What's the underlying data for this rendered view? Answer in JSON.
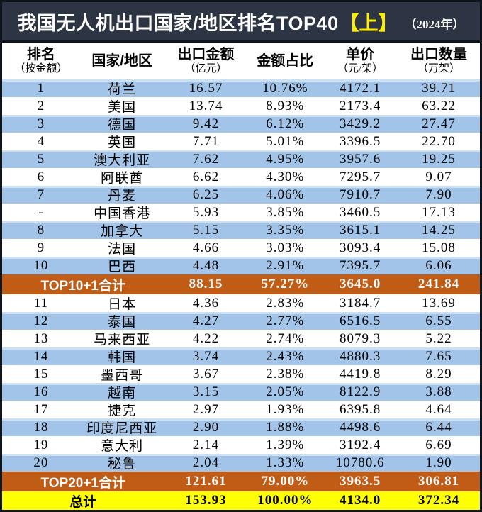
{
  "title": {
    "main": "我国无人机出口国家/地区排名TOP40",
    "part": "【上】",
    "year": "（2024年）"
  },
  "colors": {
    "title_bg": "#2d3544",
    "frame_border": "#10141b",
    "row_blue": "#a2c4e8",
    "row_blue_edge": "#cde0f2",
    "subtotal_orange": "#c15c17",
    "total_yellow": "#feff00",
    "part_highlight": "#ffee00"
  },
  "header": {
    "columns": [
      {
        "label": "排名",
        "sub": "（按金额）"
      },
      {
        "label": "国家/地区",
        "sub": ""
      },
      {
        "label": "出口金额",
        "sub": "（亿元）"
      },
      {
        "label": "金额占比",
        "sub": ""
      },
      {
        "label": "单价",
        "sub": "（元/架）"
      },
      {
        "label": "出口数量",
        "sub": "（万架）"
      }
    ]
  },
  "chart_data": {
    "type": "table",
    "title": "我国无人机出口国家/地区排名TOP40【上】（2024年）",
    "columns": [
      "排名（按金额）",
      "国家/地区",
      "出口金额（亿元）",
      "金额占比",
      "单价（元/架）",
      "出口数量（万架）"
    ],
    "rows": [
      {
        "type": "data",
        "rank": "1",
        "country": "荷兰",
        "amount": "16.57",
        "share": "10.76%",
        "price": "4172.1",
        "qty": "39.71"
      },
      {
        "type": "data",
        "rank": "2",
        "country": "美国",
        "amount": "13.74",
        "share": "8.93%",
        "price": "2173.4",
        "qty": "63.22"
      },
      {
        "type": "data",
        "rank": "3",
        "country": "德国",
        "amount": "9.42",
        "share": "6.12%",
        "price": "3429.2",
        "qty": "27.47"
      },
      {
        "type": "data",
        "rank": "4",
        "country": "英国",
        "amount": "7.71",
        "share": "5.01%",
        "price": "3396.5",
        "qty": "22.70"
      },
      {
        "type": "data",
        "rank": "5",
        "country": "澳大利亚",
        "amount": "7.62",
        "share": "4.95%",
        "price": "3957.6",
        "qty": "19.25"
      },
      {
        "type": "data",
        "rank": "6",
        "country": "阿联酋",
        "amount": "6.62",
        "share": "4.30%",
        "price": "7295.7",
        "qty": "9.07"
      },
      {
        "type": "data",
        "rank": "7",
        "country": "丹麦",
        "amount": "6.25",
        "share": "4.06%",
        "price": "7910.7",
        "qty": "7.90"
      },
      {
        "type": "data",
        "rank": "-",
        "country": "中国香港",
        "amount": "5.93",
        "share": "3.85%",
        "price": "3460.5",
        "qty": "17.13"
      },
      {
        "type": "data",
        "rank": "8",
        "country": "加拿大",
        "amount": "5.15",
        "share": "3.35%",
        "price": "3615.1",
        "qty": "14.25"
      },
      {
        "type": "data",
        "rank": "9",
        "country": "法国",
        "amount": "4.66",
        "share": "3.03%",
        "price": "3093.4",
        "qty": "15.08"
      },
      {
        "type": "data",
        "rank": "10",
        "country": "巴西",
        "amount": "4.48",
        "share": "2.91%",
        "price": "7395.7",
        "qty": "6.06"
      },
      {
        "type": "subtotal",
        "label": "TOP10+1合计",
        "amount": "88.15",
        "share": "57.27%",
        "price": "3645.0",
        "qty": "241.84"
      },
      {
        "type": "data",
        "rank": "11",
        "country": "日本",
        "amount": "4.36",
        "share": "2.83%",
        "price": "3184.7",
        "qty": "13.69"
      },
      {
        "type": "data",
        "rank": "12",
        "country": "泰国",
        "amount": "4.27",
        "share": "2.77%",
        "price": "6516.5",
        "qty": "6.55"
      },
      {
        "type": "data",
        "rank": "13",
        "country": "马来西亚",
        "amount": "4.22",
        "share": "2.74%",
        "price": "8079.3",
        "qty": "5.22"
      },
      {
        "type": "data",
        "rank": "14",
        "country": "韩国",
        "amount": "3.74",
        "share": "2.43%",
        "price": "4880.3",
        "qty": "7.65"
      },
      {
        "type": "data",
        "rank": "15",
        "country": "墨西哥",
        "amount": "3.67",
        "share": "2.38%",
        "price": "4419.8",
        "qty": "8.29"
      },
      {
        "type": "data",
        "rank": "16",
        "country": "越南",
        "amount": "3.15",
        "share": "2.05%",
        "price": "8122.9",
        "qty": "3.88"
      },
      {
        "type": "data",
        "rank": "17",
        "country": "捷克",
        "amount": "2.97",
        "share": "1.93%",
        "price": "6395.8",
        "qty": "4.64"
      },
      {
        "type": "data",
        "rank": "18",
        "country": "印度尼西亚",
        "amount": "2.90",
        "share": "1.88%",
        "price": "4498.6",
        "qty": "6.44"
      },
      {
        "type": "data",
        "rank": "19",
        "country": "意大利",
        "amount": "2.14",
        "share": "1.39%",
        "price": "3192.4",
        "qty": "6.69"
      },
      {
        "type": "data",
        "rank": "20",
        "country": "秘鲁",
        "amount": "2.04",
        "share": "1.33%",
        "price": "10780.6",
        "qty": "1.90"
      },
      {
        "type": "subtotal",
        "label": "TOP20+1合计",
        "amount": "121.61",
        "share": "79.00%",
        "price": "3963.5",
        "qty": "306.81"
      },
      {
        "type": "total",
        "label": "总计",
        "amount": "153.93",
        "share": "100.00%",
        "price": "4134.0",
        "qty": "372.34"
      }
    ]
  }
}
